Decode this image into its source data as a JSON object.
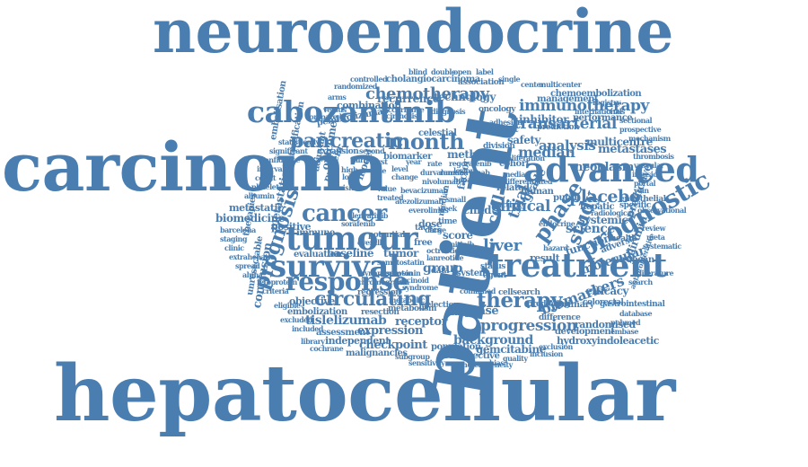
{
  "color": "#4a7eb0",
  "words": [
    {
      "t": "neuroendocrine"
    },
    {
      "t": "carcinoma"
    },
    {
      "t": "hepatocellular"
    },
    {
      "t": "patient"
    },
    {
      "t": "cabozantinib"
    },
    {
      "t": "advanced"
    },
    {
      "t": "treatment"
    },
    {
      "t": "survival"
    },
    {
      "t": "tumour"
    },
    {
      "t": "response"
    },
    {
      "t": "cancer"
    },
    {
      "t": "pancreatic"
    },
    {
      "t": "month"
    },
    {
      "t": "chemotherapy"
    },
    {
      "t": "immunotherapy"
    },
    {
      "t": "transarterial"
    },
    {
      "t": "prognostic"
    },
    {
      "t": "prognosis"
    },
    {
      "t": "circulating"
    },
    {
      "t": "therapy"
    },
    {
      "t": "progression"
    },
    {
      "t": "median"
    },
    {
      "t": "phase"
    },
    {
      "t": "study"
    },
    {
      "t": "placebo"
    },
    {
      "t": "neoplasm"
    },
    {
      "t": "metastases"
    },
    {
      "t": "analysis"
    },
    {
      "t": "liver"
    },
    {
      "t": "trial"
    },
    {
      "t": "cell"
    },
    {
      "t": "clinical"
    },
    {
      "t": "science"
    },
    {
      "t": "molecular"
    },
    {
      "t": "biomarkers"
    },
    {
      "t": "efficacy"
    },
    {
      "t": "background"
    },
    {
      "t": "expression"
    },
    {
      "t": "tislelizumab"
    },
    {
      "t": "receptor"
    },
    {
      "t": "disease"
    },
    {
      "t": "checkpoint"
    },
    {
      "t": "gemcitabine"
    },
    {
      "t": "hydroxyindoleacetic"
    },
    {
      "t": "development"
    },
    {
      "t": "randomised"
    },
    {
      "t": "biomedicine"
    },
    {
      "t": "metastatic"
    },
    {
      "t": "conclusion"
    },
    {
      "t": "objective"
    },
    {
      "t": "embolization"
    },
    {
      "t": "unresectable"
    },
    {
      "t": "cholangiocarcinoma"
    },
    {
      "t": "recurrence"
    },
    {
      "t": "technology"
    },
    {
      "t": "combination"
    },
    {
      "t": "chemoembolization"
    },
    {
      "t": "management"
    },
    {
      "t": "inhibitor"
    },
    {
      "t": "performance"
    },
    {
      "t": "safety"
    },
    {
      "t": "multicentre"
    },
    {
      "t": "metastatic"
    },
    {
      "t": "systemic"
    },
    {
      "t": "function"
    },
    {
      "t": "european"
    },
    {
      "t": "grade"
    },
    {
      "t": "score"
    },
    {
      "t": "group"
    },
    {
      "t": "result"
    },
    {
      "t": "tumor"
    },
    {
      "t": "baseline"
    },
    {
      "t": "evaluation"
    },
    {
      "t": "independent"
    },
    {
      "t": "assessment"
    },
    {
      "t": "malignancies"
    },
    {
      "t": "population"
    },
    {
      "t": "retrospective"
    },
    {
      "t": "method"
    },
    {
      "t": "protein"
    },
    {
      "t": "endpoint"
    },
    {
      "t": "celestial"
    },
    {
      "t": "cohort"
    },
    {
      "t": "human"
    },
    {
      "t": "related"
    },
    {
      "t": "pugh"
    },
    {
      "t": "cellsearch"
    },
    {
      "t": "system"
    },
    {
      "t": "dose"
    },
    {
      "t": "child"
    },
    {
      "t": "pembrolizumab"
    },
    {
      "t": "bilirubin"
    },
    {
      "t": "hepatic"
    },
    {
      "t": "predictive"
    },
    {
      "t": "adverse"
    },
    {
      "t": "positive"
    },
    {
      "t": "immune"
    },
    {
      "t": "primary"
    },
    {
      "t": "outcome"
    },
    {
      "t": "model"
    },
    {
      "t": "biomarker"
    },
    {
      "t": "factor"
    },
    {
      "t": "median"
    },
    {
      "t": "therapies"
    },
    {
      "t": "stratification"
    },
    {
      "t": "adjuvant"
    },
    {
      "t": "embolisation"
    },
    {
      "t": "potential"
    },
    {
      "t": "resection"
    },
    {
      "t": "selection"
    },
    {
      "t": "metabolism"
    },
    {
      "t": "imaging"
    },
    {
      "t": "activity"
    },
    {
      "t": "predicting"
    },
    {
      "t": "difference"
    },
    {
      "t": "association"
    },
    {
      "t": "prediction"
    },
    {
      "t": "expansion"
    },
    {
      "t": "regression"
    },
    {
      "t": "endothelial"
    },
    {
      "t": "agent"
    },
    {
      "t": "oncology"
    },
    {
      "t": "ratio"
    },
    {
      "t": "combined"
    },
    {
      "t": "metabolic"
    },
    {
      "t": "specific"
    },
    {
      "t": "status"
    },
    {
      "t": "health"
    },
    {
      "t": "gastrointestinal"
    },
    {
      "t": "division"
    },
    {
      "t": "colorectal"
    },
    {
      "t": "radiological"
    },
    {
      "t": "hazard"
    },
    {
      "t": "median"
    },
    {
      "t": "international"
    },
    {
      "t": "adhesion"
    },
    {
      "t": "cirrhosis"
    },
    {
      "t": "occurrence"
    },
    {
      "t": "diagnosis"
    },
    {
      "t": "sorafenib"
    },
    {
      "t": "lenvatinib"
    },
    {
      "t": "atezolizumab"
    },
    {
      "t": "bevacizumab"
    },
    {
      "t": "nivolumab"
    },
    {
      "t": "durvalumab"
    },
    {
      "t": "regorafenib"
    },
    {
      "t": "ramucirumab"
    },
    {
      "t": "everolimus"
    },
    {
      "t": "sunitinib"
    },
    {
      "t": "octreotide"
    },
    {
      "t": "lanreotide"
    },
    {
      "t": "somatostatin"
    },
    {
      "t": "serotonin"
    },
    {
      "t": "carcinoid"
    },
    {
      "t": "syndrome"
    },
    {
      "t": "chromogranin"
    },
    {
      "t": "synaptophysin"
    },
    {
      "t": "proliferation"
    },
    {
      "t": "differentiated"
    },
    {
      "t": "endocrine"
    },
    {
      "t": "small"
    },
    {
      "t": "large"
    },
    {
      "t": "free"
    },
    {
      "t": "overall"
    },
    {
      "t": "rate"
    },
    {
      "t": "week"
    },
    {
      "t": "year"
    },
    {
      "t": "level"
    },
    {
      "t": "change"
    },
    {
      "t": "value"
    },
    {
      "t": "treated"
    },
    {
      "t": "first"
    },
    {
      "t": "line"
    },
    {
      "t": "second"
    },
    {
      "t": "third"
    },
    {
      "t": "high"
    },
    {
      "t": "low"
    },
    {
      "t": "risk"
    },
    {
      "t": "time"
    },
    {
      "t": "data"
    },
    {
      "t": "tace"
    },
    {
      "t": "ctcs"
    },
    {
      "t": "hepatitis"
    },
    {
      "t": "lesion"
    },
    {
      "t": "antiproliferative"
    },
    {
      "t": "mechanism"
    },
    {
      "t": "thrombosis"
    },
    {
      "t": "vascular"
    },
    {
      "t": "invasion"
    },
    {
      "t": "portal"
    },
    {
      "t": "vein"
    },
    {
      "t": "barcelona"
    },
    {
      "t": "staging"
    },
    {
      "t": "clinic"
    },
    {
      "t": "extrahepatic"
    },
    {
      "t": "spread"
    },
    {
      "t": "alpha"
    },
    {
      "t": "fetoprotein"
    },
    {
      "t": "albumin"
    },
    {
      "t": "platelet"
    },
    {
      "t": "count"
    },
    {
      "t": "interval"
    },
    {
      "t": "confidence"
    },
    {
      "t": "significant"
    },
    {
      "t": "statistically"
    },
    {
      "t": "compared"
    },
    {
      "t": "versus"
    },
    {
      "t": "arms"
    },
    {
      "t": "randomized"
    },
    {
      "t": "controlled"
    },
    {
      "t": "blind"
    },
    {
      "t": "double"
    },
    {
      "t": "open"
    },
    {
      "t": "label"
    },
    {
      "t": "single"
    },
    {
      "t": "center"
    },
    {
      "t": "multicenter"
    },
    {
      "t": "registry"
    },
    {
      "t": "cross"
    },
    {
      "t": "sectional"
    },
    {
      "t": "prospective"
    },
    {
      "t": "observational"
    },
    {
      "t": "review"
    },
    {
      "t": "meta"
    },
    {
      "t": "systematic"
    },
    {
      "t": "literature"
    },
    {
      "t": "search"
    },
    {
      "t": "database"
    },
    {
      "t": "pubmed"
    },
    {
      "t": "embase"
    },
    {
      "t": "cochrane"
    },
    {
      "t": "library"
    },
    {
      "t": "included"
    },
    {
      "t": "excluded"
    },
    {
      "t": "eligible"
    },
    {
      "t": "criteria"
    },
    {
      "t": "inclusion"
    },
    {
      "t": "exclusion"
    },
    {
      "t": "quality"
    },
    {
      "t": "bias"
    },
    {
      "t": "heterogeneity"
    },
    {
      "t": "sensitivity"
    },
    {
      "t": "subgroup"
    }
  ]
}
